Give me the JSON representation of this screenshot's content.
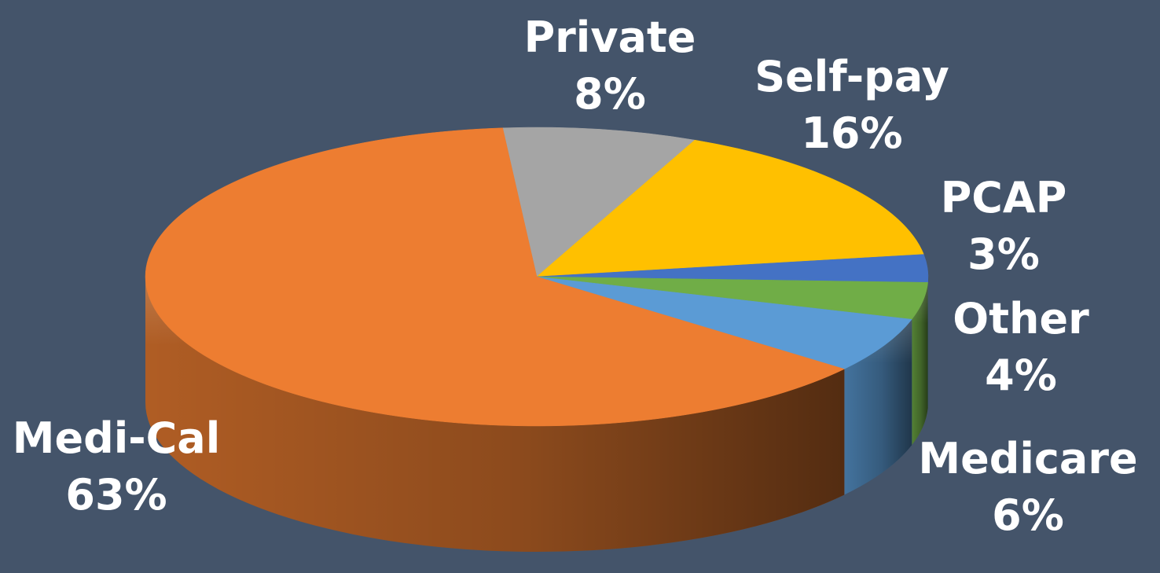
{
  "chart_data": {
    "type": "pie",
    "style": "3d",
    "slices": [
      {
        "name": "Private",
        "label": "8%",
        "value": 8,
        "color": "#a5a5a5"
      },
      {
        "name": "Self-pay",
        "label": "16%",
        "value": 16,
        "color": "#ffc000"
      },
      {
        "name": "PCAP",
        "label": "3%",
        "value": 3,
        "color": "#4472c4"
      },
      {
        "name": "Other",
        "label": "4%",
        "value": 4,
        "color": "#70ad47"
      },
      {
        "name": "Medicare",
        "label": "6%",
        "value": 6,
        "color": "#5b9bd5"
      },
      {
        "name": "Medi-Cal",
        "label": "63%",
        "value": 63,
        "color": "#ed7d31"
      }
    ],
    "start_angle_deg": -95,
    "direction": "clockwise"
  },
  "colors": {
    "background": "#44546a",
    "label_text": "#ffffff"
  }
}
